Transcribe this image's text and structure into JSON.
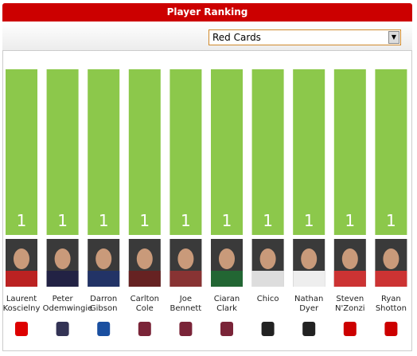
{
  "chart_data": {
    "type": "bar",
    "title": "Player Ranking",
    "selector": "Red Cards",
    "categories": [
      "Laurent Koscielny",
      "Peter Odemwingie",
      "Darron Gibson",
      "Carlton Cole",
      "Joe Bennett",
      "Ciaran Clark",
      "Chico",
      "Nathan Dyer",
      "Steven N'Zonzi",
      "Ryan Shotton"
    ],
    "values": [
      1,
      1,
      1,
      1,
      1,
      1,
      1,
      1,
      1,
      1
    ],
    "color": "#8cc84b",
    "ylim": [
      0,
      1
    ]
  }
}
